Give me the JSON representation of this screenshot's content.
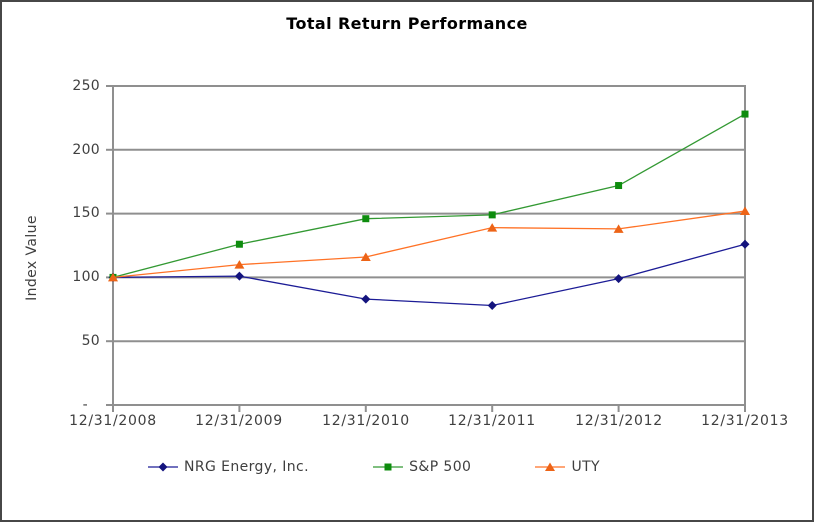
{
  "title": "Total Return Performance",
  "colors": {
    "grid": "#8f8f8f",
    "axis_text": "#3f3f3f",
    "title_text": "#000000",
    "outer_border": "#474747",
    "nrg_line": "#1c1c96",
    "nrg_marker": "#14147e",
    "sp500_line": "#339933",
    "sp500_marker": "#0e8c0e",
    "uty_line": "#ff7226",
    "uty_marker": "#ed6417"
  },
  "chart_data": {
    "type": "line",
    "title": "Total Return Performance",
    "xlabel": "",
    "ylabel": "Index Value",
    "ylim": [
      0,
      250
    ],
    "ytick_interval": 50,
    "grid": true,
    "legend_position": "bottom",
    "categories": [
      "12/31/2008",
      "12/31/2009",
      "12/31/2010",
      "12/31/2011",
      "12/31/2012",
      "12/31/2013"
    ],
    "yticks": [
      {
        "value": 250,
        "label": "250"
      },
      {
        "value": 200,
        "label": "200"
      },
      {
        "value": 150,
        "label": "150"
      },
      {
        "value": 100,
        "label": "100"
      },
      {
        "value": 50,
        "label": "50"
      },
      {
        "value": 0,
        "label": "-"
      }
    ],
    "series": [
      {
        "name": "NRG Energy, Inc.",
        "marker": "diamond",
        "color": "#1c1c96",
        "marker_color": "#14147e",
        "values": [
          100,
          101,
          83,
          78,
          99,
          126
        ]
      },
      {
        "name": "S&P 500",
        "marker": "square",
        "color": "#339933",
        "marker_color": "#0e8c0e",
        "values": [
          100,
          126,
          146,
          149,
          172,
          228
        ]
      },
      {
        "name": "UTY",
        "marker": "triangle",
        "color": "#ff7226",
        "marker_color": "#ed6417",
        "values": [
          100,
          110,
          116,
          139,
          138,
          152
        ]
      }
    ]
  }
}
